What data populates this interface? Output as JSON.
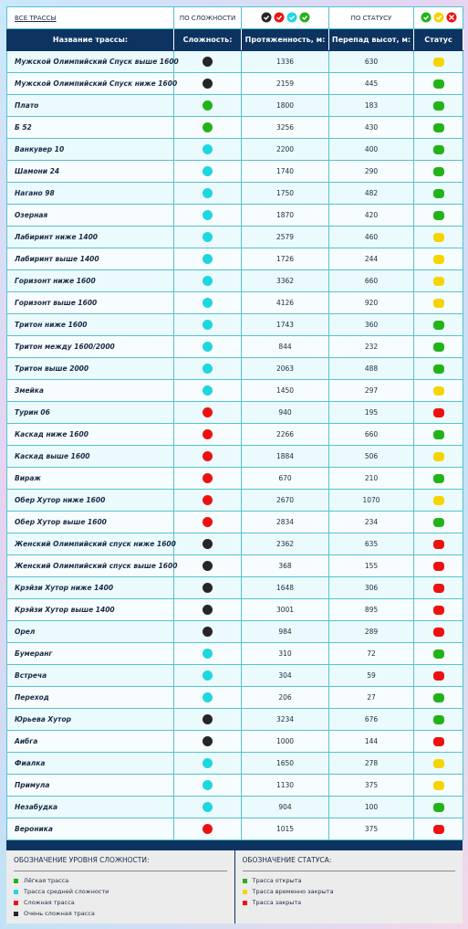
{
  "filters": {
    "all": "ВСЕ ТРАССЫ",
    "by_difficulty": "ПО СЛОЖНОСТИ",
    "by_status": "ПО СТАТУСУ"
  },
  "table": {
    "headers": [
      "Название трассы:",
      "Сложность:",
      "Протяженность, м:",
      "Перепад высот, м:",
      "Статус"
    ],
    "rows": [
      [
        "Мужской Олимпийский Спуск выше 1600",
        "#262626",
        1336,
        630,
        "#f5d400"
      ],
      [
        "Мужской Олимпийский Спуск ниже 1600",
        "#262626",
        2159,
        445,
        "#22b318"
      ],
      [
        "Плато",
        "#22b318",
        1800,
        183,
        "#22b318"
      ],
      [
        "Б 52",
        "#22b318",
        3256,
        430,
        "#22b318"
      ],
      [
        "Ванкувер 10",
        "#1fd6e0",
        2200,
        400,
        "#22b318"
      ],
      [
        "Шамони 24",
        "#1fd6e0",
        1740,
        290,
        "#22b318"
      ],
      [
        "Нагано 98",
        "#1fd6e0",
        1750,
        482,
        "#22b318"
      ],
      [
        "Озерная",
        "#1fd6e0",
        1870,
        420,
        "#22b318"
      ],
      [
        "Лабиринт ниже 1400",
        "#1fd6e0",
        2579,
        460,
        "#f5d400"
      ],
      [
        "Лабиринт выше 1400",
        "#1fd6e0",
        1726,
        244,
        "#f5d400"
      ],
      [
        "Горизонт ниже 1600",
        "#1fd6e0",
        3362,
        660,
        "#f5d400"
      ],
      [
        "Горизонт выше 1600",
        "#1fd6e0",
        4126,
        920,
        "#f5d400"
      ],
      [
        "Тритон ниже 1600",
        "#1fd6e0",
        1743,
        360,
        "#22b318"
      ],
      [
        "Тритон между 1600/2000",
        "#1fd6e0",
        844,
        232,
        "#22b318"
      ],
      [
        "Тритон выше 2000",
        "#1fd6e0",
        2063,
        488,
        "#22b318"
      ],
      [
        "Змейка",
        "#1fd6e0",
        1450,
        297,
        "#f5d400"
      ],
      [
        "Турин 06",
        "#ee1111",
        940,
        195,
        "#ee1111"
      ],
      [
        "Каскад ниже 1600",
        "#ee1111",
        2266,
        660,
        "#22b318"
      ],
      [
        "Каскад выше 1600",
        "#ee1111",
        1884,
        506,
        "#f5d400"
      ],
      [
        "Вираж",
        "#ee1111",
        670,
        210,
        "#22b318"
      ],
      [
        "Обер Хутор ниже 1600",
        "#ee1111",
        2670,
        1070,
        "#f5d400"
      ],
      [
        "Обер Хутор выше 1600",
        "#ee1111",
        2834,
        234,
        "#22b318"
      ],
      [
        "Женский Олимпийский спуск ниже 1600",
        "#262626",
        2362,
        635,
        "#ee1111"
      ],
      [
        "Женский Олимпийский спуск выше 1600",
        "#262626",
        368,
        155,
        "#ee1111"
      ],
      [
        "Крэйзи Хутор ниже 1400",
        "#262626",
        1648,
        306,
        "#ee1111"
      ],
      [
        "Крэйзи Хутор выше 1400",
        "#262626",
        3001,
        895,
        "#ee1111"
      ],
      [
        "Орел",
        "#262626",
        984,
        289,
        "#ee1111"
      ],
      [
        "Бумеранг",
        "#1fd6e0",
        310,
        72,
        "#22b318"
      ],
      [
        "Встреча",
        "#1fd6e0",
        304,
        59,
        "#ee1111"
      ],
      [
        "Переход",
        "#1fd6e0",
        206,
        27,
        "#22b318"
      ],
      [
        "Юрьева Хутор",
        "#262626",
        3234,
        676,
        "#22b318"
      ],
      [
        "Аибга",
        "#262626",
        1000,
        144,
        "#ee1111"
      ],
      [
        "Фиалка",
        "#1fd6e0",
        1650,
        278,
        "#f5d400"
      ],
      [
        "Примула",
        "#1fd6e0",
        1130,
        375,
        "#f5d400"
      ],
      [
        "Незабудка",
        "#1fd6e0",
        904,
        100,
        "#22b318"
      ],
      [
        "Вероника",
        "#ee1111",
        1015,
        375,
        "#ee1111"
      ]
    ]
  },
  "legend": {
    "difficulty": {
      "title": "ОБОЗНАЧЕНИЕ УРОВНЯ СЛОЖНОСТИ:",
      "items": [
        {
          "color": "#22b318",
          "label": "Лёгкая трасса"
        },
        {
          "color": "#1fd6e0",
          "label": "Трасса средней сложности"
        },
        {
          "color": "#ee1111",
          "label": "Сложная трасса"
        },
        {
          "color": "#262626",
          "label": "Очень сложная трасса"
        }
      ]
    },
    "status": {
      "title": "ОБОЗНАЧЕНИЕ СТАТУСА:",
      "items": [
        {
          "color": "#22b318",
          "label": "Трасса открыта"
        },
        {
          "color": "#f5d400",
          "label": "Трасса временно закрыта"
        },
        {
          "color": "#ee1111",
          "label": "Трасса закрыта"
        }
      ]
    }
  }
}
